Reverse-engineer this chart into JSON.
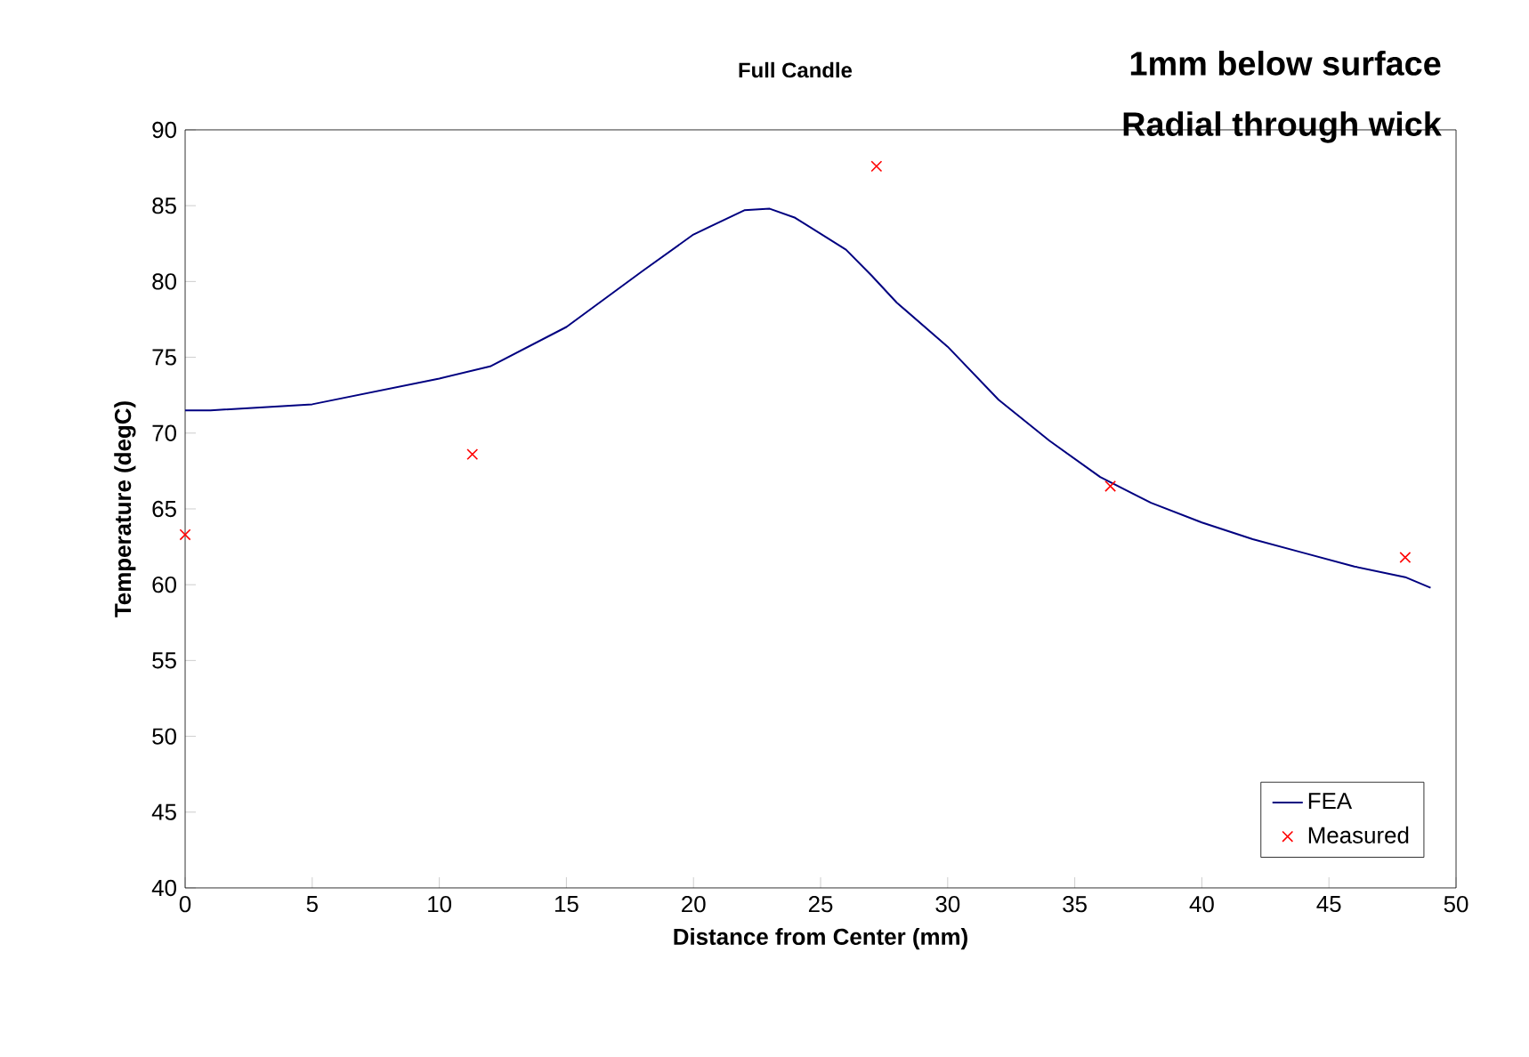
{
  "chart_data": {
    "type": "line",
    "title": "1mm below surface",
    "subtitle": "Radial through wick",
    "annotations": [
      "Full Candle"
    ],
    "xlabel": "Distance from Center (mm)",
    "ylabel": "Temperature (degC)",
    "xlim": [
      0,
      50
    ],
    "xticks": [
      0,
      5,
      10,
      15,
      20,
      25,
      30,
      35,
      40,
      45,
      50
    ],
    "ylim": [
      40,
      90
    ],
    "yticks": [
      40,
      45,
      50,
      55,
      60,
      65,
      70,
      75,
      80,
      85,
      90
    ],
    "legend": "bottom right",
    "series": [
      {
        "name": "FEA",
        "color": "#000080",
        "marker": "none",
        "x": [
          0,
          1,
          5,
          10,
          12,
          15,
          18,
          20,
          22,
          23,
          24,
          26,
          27,
          28,
          30,
          32,
          34,
          36,
          38,
          40,
          42,
          44,
          46,
          48,
          49
        ],
        "values": [
          71.5,
          71.5,
          71.9,
          73.6,
          74.4,
          77.0,
          80.7,
          83.1,
          84.7,
          84.8,
          84.2,
          82.1,
          80.4,
          78.6,
          75.7,
          72.2,
          69.5,
          67.1,
          65.4,
          64.1,
          63.0,
          62.1,
          61.2,
          60.5,
          59.8
        ]
      },
      {
        "name": "Measured",
        "type": "scatter",
        "color": "#ff0000",
        "marker": "cross",
        "x": [
          0,
          11.3,
          27.2,
          36.4,
          48.0
        ],
        "values": [
          63.3,
          68.6,
          87.6,
          66.5,
          61.8
        ]
      }
    ]
  }
}
